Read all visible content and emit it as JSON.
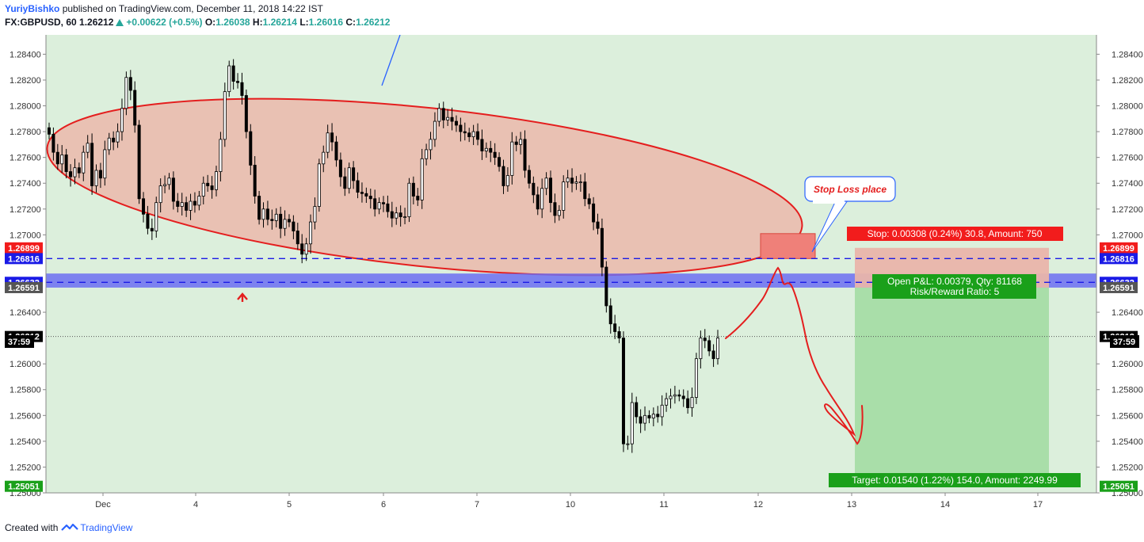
{
  "header": {
    "author": "YuriyBishko",
    "published_text": "published on TradingView.com, December 11, 2018 14:22 IST",
    "symbol_line": "FX:GBPUSD, 60",
    "last": "1.26212",
    "change": "+0.00622 (+0.5%)",
    "o_label": "O:",
    "o_value": "1.26038",
    "h_label": "H:",
    "h_value": "1.26214",
    "l_label": "L:",
    "l_value": "1.26016",
    "c_label": "C:",
    "c_value": "1.26212"
  },
  "footer": {
    "created_with": "Created with",
    "brand": "TradingView"
  },
  "annotations": {
    "stop_loss_note": "Stop Loss place",
    "stop_label": "Stop: 0.00308 (0.24%) 30.8, Amount: 750",
    "pnl_line1": "Open P&L: 0.00379, Qty: 81168",
    "pnl_line2": "Risk/Reward Ratio: 5",
    "target_label": "Target: 0.01540 (1.22%) 154.0, Amount: 2249.99",
    "countdown": "37:59"
  },
  "colors": {
    "background": "#dcefdc",
    "ellipse_fill": "#e9c1b3",
    "ellipse_stroke": "#e41e1e",
    "blue_zone": "#6c6ef2",
    "dashed_line": "#1a1ae6",
    "stop_zone": "#e9b4aa",
    "target_zone": "#a9dea9",
    "stop_badge": "#f21c1c",
    "target_badge": "#1aa01a",
    "candle": "#000000"
  },
  "chart_data": {
    "type": "candlestick",
    "symbol": "FX:GBPUSD",
    "interval": "60",
    "ylim": [
      1.25,
      1.2855
    ],
    "y_ticks": [
      "1.28400",
      "1.28200",
      "1.28000",
      "1.27800",
      "1.27600",
      "1.27400",
      "1.27200",
      "1.27000",
      "1.26400",
      "1.26000",
      "1.25800",
      "1.25600",
      "1.25400",
      "1.25200",
      "1.25000"
    ],
    "x_ticks": [
      "Dec",
      "4",
      "5",
      "6",
      "7",
      "10",
      "11",
      "12",
      "13",
      "14",
      "17"
    ],
    "price_labels": [
      {
        "value": "1.26899",
        "color": "#f21c1c"
      },
      {
        "value": "1.26816",
        "color": "#1a1ae6"
      },
      {
        "value": "1.26632",
        "color": "#1a1ae6"
      },
      {
        "value": "1.26591",
        "color": "#555555"
      },
      {
        "value": "1.26212",
        "color": "#000000"
      },
      {
        "value": "1.25051",
        "color": "#1aa01a"
      }
    ],
    "levels": {
      "stop": 1.26899,
      "entry_upper": 1.26816,
      "entry": 1.26632,
      "zone_low": 1.26591,
      "last": 1.26212,
      "target": 1.25051
    },
    "blue_zone": [
      1.26591,
      1.267
    ],
    "closes": [
      1.2778,
      1.2764,
      1.2755,
      1.2762,
      1.2749,
      1.2745,
      1.2752,
      1.2748,
      1.2764,
      1.2771,
      1.2738,
      1.275,
      1.2744,
      1.2766,
      1.2775,
      1.2772,
      1.278,
      1.2798,
      1.2822,
      1.2812,
      1.2785,
      1.2728,
      1.2716,
      1.2705,
      1.2703,
      1.2725,
      1.2738,
      1.2739,
      1.2744,
      1.2726,
      1.2722,
      1.2725,
      1.2719,
      1.2726,
      1.2723,
      1.273,
      1.274,
      1.2738,
      1.2735,
      1.2749,
      1.2774,
      1.2811,
      1.2831,
      1.2819,
      1.2818,
      1.2808,
      1.278,
      1.2754,
      1.273,
      1.2712,
      1.272,
      1.2712,
      1.2711,
      1.2716,
      1.2705,
      1.2712,
      1.271,
      1.2703,
      1.2693,
      1.2685,
      1.2693,
      1.271,
      1.2722,
      1.2755,
      1.2764,
      1.2779,
      1.2772,
      1.2758,
      1.2745,
      1.2736,
      1.2752,
      1.2742,
      1.2733,
      1.2732,
      1.273,
      1.2728,
      1.272,
      1.2725,
      1.2724,
      1.2718,
      1.2713,
      1.2717,
      1.2714,
      1.2714,
      1.274,
      1.273,
      1.2727,
      1.2759,
      1.2766,
      1.2774,
      1.2788,
      1.2798,
      1.2789,
      1.2791,
      1.2788,
      1.2785,
      1.278,
      1.2779,
      1.2776,
      1.278,
      1.2774,
      1.2765,
      1.2767,
      1.2764,
      1.276,
      1.2753,
      1.2738,
      1.2746,
      1.2772,
      1.277,
      1.2774,
      1.275,
      1.274,
      1.2731,
      1.272,
      1.2736,
      1.2744,
      1.2725,
      1.2715,
      1.2719,
      1.2741,
      1.2744,
      1.274,
      1.2741,
      1.2741,
      1.2728,
      1.2724,
      1.271,
      1.2705,
      1.2675,
      1.2645,
      1.2631,
      1.2625,
      1.262,
      1.2538,
      1.2538,
      1.257,
      1.2559,
      1.2554,
      1.256,
      1.2558,
      1.2561,
      1.2559,
      1.2568,
      1.2573,
      1.2575,
      1.2576,
      1.2575,
      1.2573,
      1.2566,
      1.2574,
      1.2604,
      1.262,
      1.2618,
      1.261,
      1.2604,
      1.262
    ]
  }
}
